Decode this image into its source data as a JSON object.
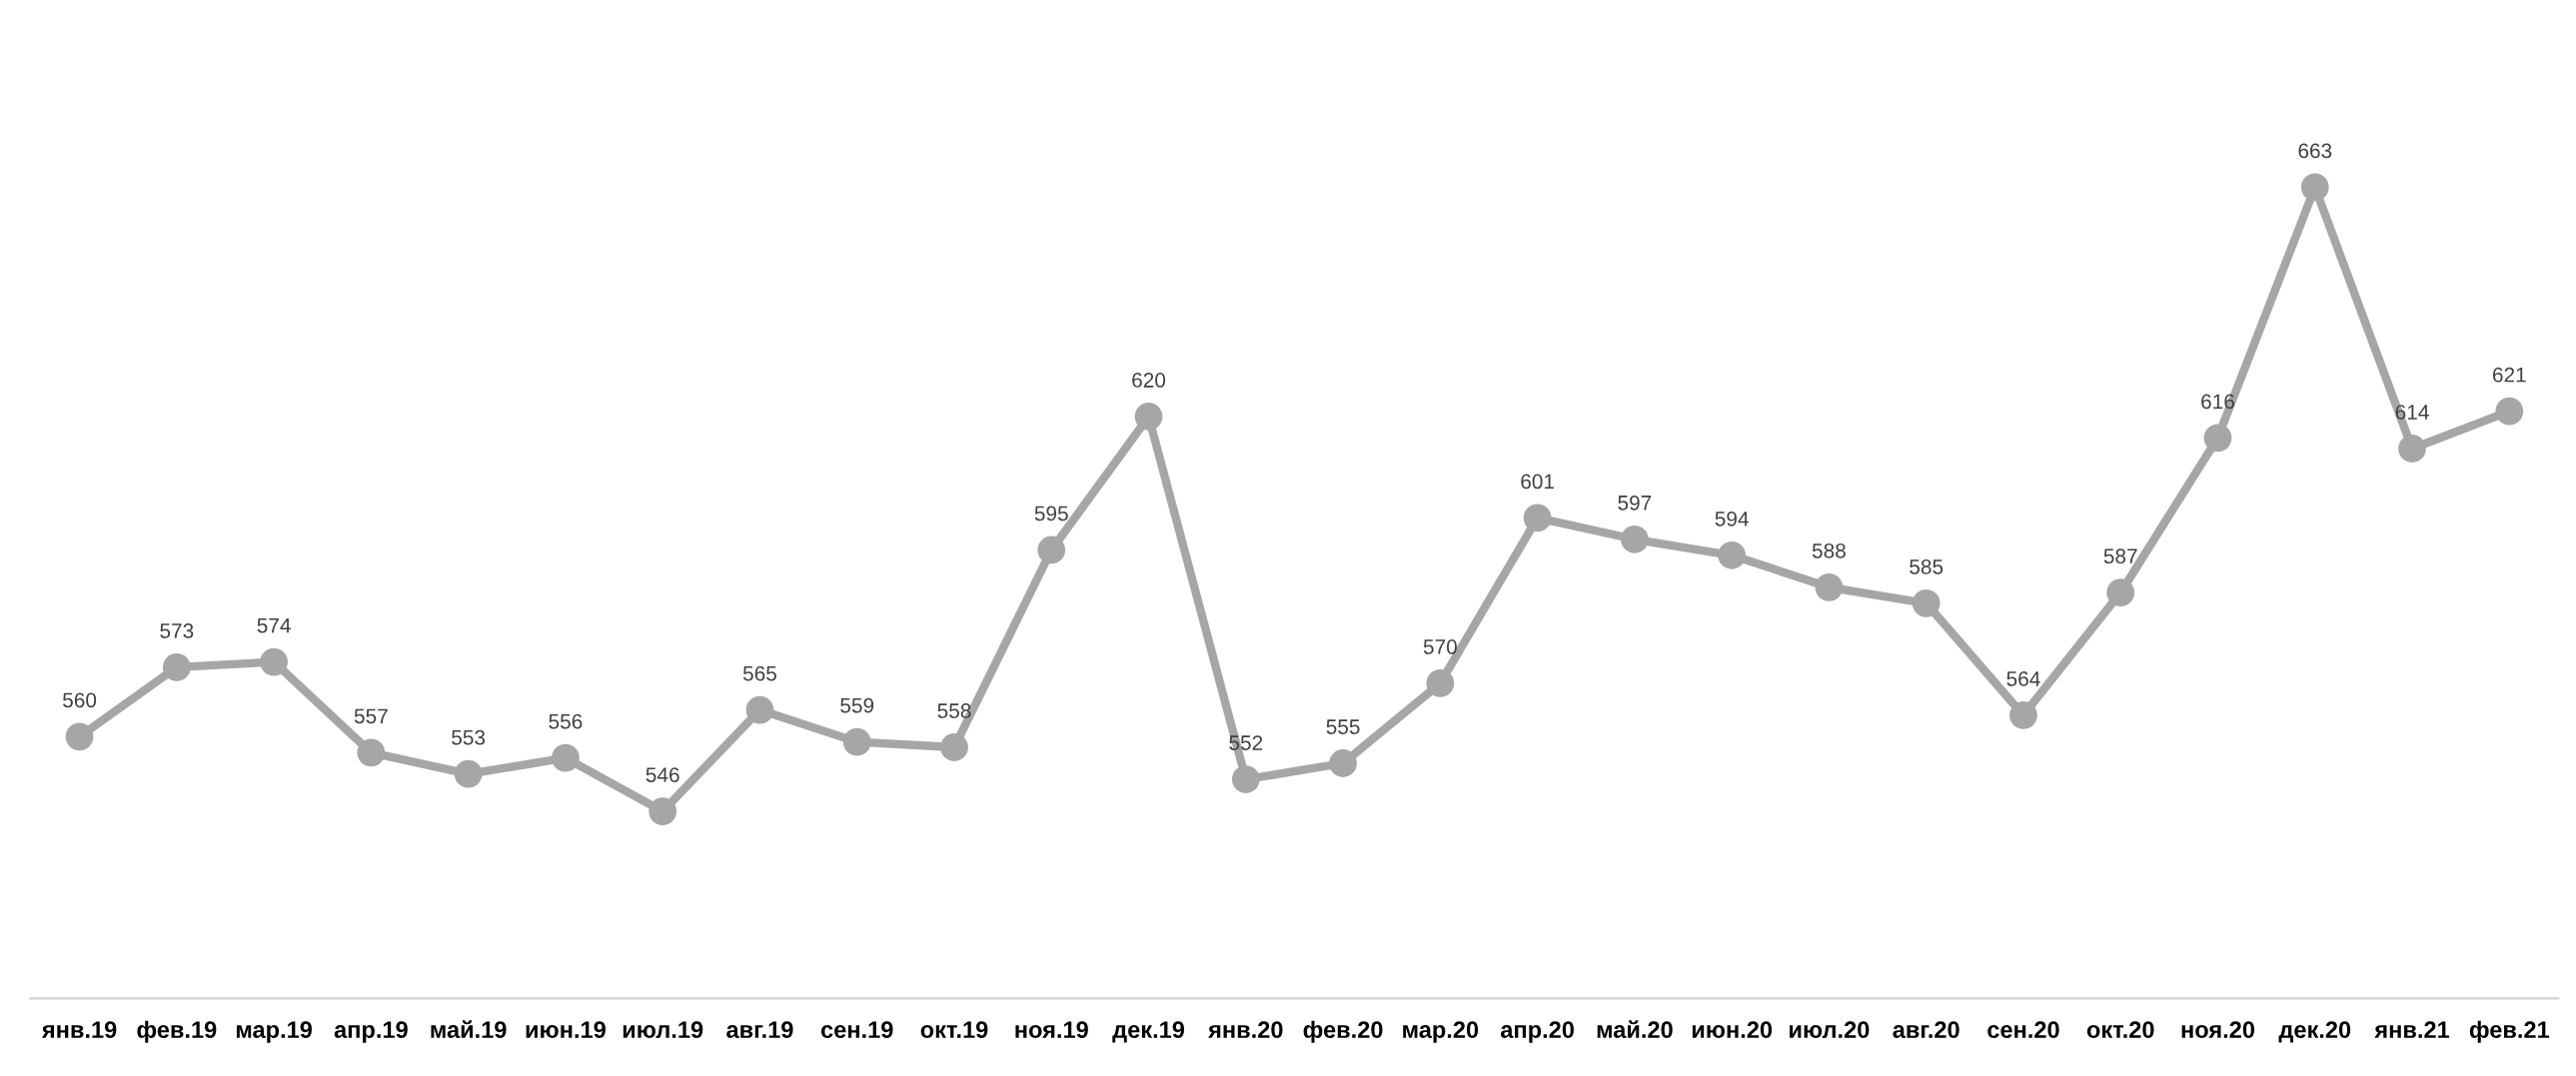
{
  "chart_data": {
    "type": "line",
    "categories": [
      "янв.19",
      "фев.19",
      "мар.19",
      "апр.19",
      "май.19",
      "июн.19",
      "июл.19",
      "авг.19",
      "сен.19",
      "окт.19",
      "ноя.19",
      "дек.19",
      "янв.20",
      "фев.20",
      "мар.20",
      "апр.20",
      "май.20",
      "июн.20",
      "июл.20",
      "авг.20",
      "сен.20",
      "окт.20",
      "ноя.20",
      "дек.20",
      "янв.21",
      "фев.21"
    ],
    "series": [
      {
        "color": "#a6a6a6",
        "values": [
          560,
          573,
          574,
          557,
          553,
          556,
          546,
          565,
          559,
          558,
          595,
          620,
          552,
          555,
          570,
          601,
          597,
          594,
          588,
          585,
          564,
          587,
          616,
          663,
          614,
          621
        ]
      }
    ],
    "tick_labels": "x",
    "data_labels": true,
    "marker": "circle",
    "line_style": "solid",
    "grid": false,
    "legend": false
  }
}
